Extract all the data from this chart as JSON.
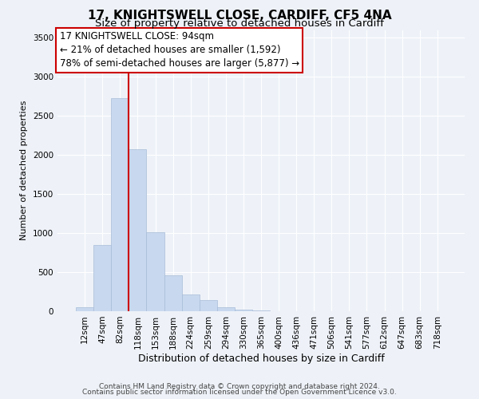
{
  "title": "17, KNIGHTSWELL CLOSE, CARDIFF, CF5 4NA",
  "subtitle": "Size of property relative to detached houses in Cardiff",
  "xlabel": "Distribution of detached houses by size in Cardiff",
  "ylabel": "Number of detached properties",
  "bar_color": "#c8d8ee",
  "bar_edge_color": "#a8bcd8",
  "bin_labels": [
    "12sqm",
    "47sqm",
    "82sqm",
    "118sqm",
    "153sqm",
    "188sqm",
    "224sqm",
    "259sqm",
    "294sqm",
    "330sqm",
    "365sqm",
    "400sqm",
    "436sqm",
    "471sqm",
    "506sqm",
    "541sqm",
    "577sqm",
    "612sqm",
    "647sqm",
    "683sqm",
    "718sqm"
  ],
  "bar_values": [
    55,
    850,
    2725,
    2075,
    1010,
    455,
    210,
    145,
    55,
    20,
    10,
    0,
    0,
    0,
    0,
    0,
    0,
    0,
    0,
    0,
    0
  ],
  "ylim": [
    0,
    3600
  ],
  "yticks": [
    0,
    500,
    1000,
    1500,
    2000,
    2500,
    3000,
    3500
  ],
  "vline_x_idx": 2,
  "annotation_box_text": "17 KNIGHTSWELL CLOSE: 94sqm\n← 21% of detached houses are smaller (1,592)\n78% of semi-detached houses are larger (5,877) →",
  "footer_line1": "Contains HM Land Registry data © Crown copyright and database right 2024.",
  "footer_line2": "Contains public sector information licensed under the Open Government Licence v3.0.",
  "background_color": "#eef2f8",
  "grid_color": "#ffffff",
  "box_edge_color": "#cc0000",
  "vline_color": "#cc0000",
  "title_fontsize": 11,
  "subtitle_fontsize": 9.5,
  "xlabel_fontsize": 9,
  "ylabel_fontsize": 8,
  "tick_fontsize": 7.5,
  "footer_fontsize": 6.5,
  "annotation_fontsize": 8.5
}
